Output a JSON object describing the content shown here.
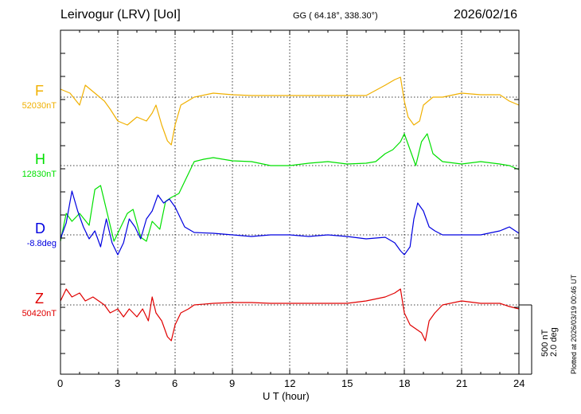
{
  "header": {
    "station": "Leirvogur (LRV)  [UoI]",
    "coords": "GG ( 64.18°, 338.30°)",
    "date": "2026/02/16"
  },
  "plotted_note": "Plotted at 2026/03/19 00:46 UT",
  "scale": {
    "nt": "500 nT",
    "deg": "2.0 deg"
  },
  "chart_data": {
    "type": "line",
    "title": "Leirvogur (LRV)  [UoI]",
    "xlabel": "U T (hour)",
    "ylabel": "",
    "xlim": [
      0,
      24
    ],
    "x_ticks": [
      "0",
      "3",
      "6",
      "9",
      "12",
      "15",
      "18",
      "21",
      "24"
    ],
    "y_unit_scale": "500 nT / 2.0 deg per scale bar",
    "grid": true,
    "series": [
      {
        "name": "F",
        "baseline": "52030nT",
        "color": "#f0b000",
        "x": [
          0,
          0.5,
          1,
          1.3,
          1.8,
          2.3,
          2.6,
          3,
          3.5,
          4,
          4.5,
          4.8,
          5,
          5.3,
          5.6,
          5.8,
          6,
          6.3,
          7,
          8,
          9,
          10,
          11,
          12,
          13,
          14,
          15,
          16,
          17,
          17.5,
          17.8,
          18,
          18.2,
          18.5,
          18.8,
          19,
          19.5,
          20,
          21,
          22,
          23,
          23.5,
          24
        ],
        "y": [
          10,
          5,
          -10,
          15,
          5,
          -5,
          -15,
          -30,
          -35,
          -25,
          -30,
          -20,
          -10,
          -35,
          -55,
          -60,
          -35,
          -10,
          0,
          5,
          3,
          2,
          2,
          2,
          2,
          2,
          2,
          2,
          15,
          22,
          25,
          -5,
          -25,
          -35,
          -30,
          -10,
          0,
          0,
          5,
          3,
          3,
          -5,
          -10
        ]
      },
      {
        "name": "H",
        "baseline": "12830nT",
        "color": "#00e000",
        "x": [
          0,
          0.3,
          0.6,
          1,
          1.5,
          1.8,
          2.1,
          2.5,
          2.8,
          3.1,
          3.5,
          3.8,
          4.2,
          4.5,
          4.8,
          5.2,
          5.5,
          5.8,
          6.2,
          6.6,
          7,
          7.5,
          8,
          9,
          10,
          11,
          12,
          13,
          14,
          15,
          16,
          16.5,
          17,
          17.4,
          17.8,
          18,
          18.3,
          18.6,
          18.9,
          19.2,
          19.5,
          20,
          21,
          22,
          23,
          23.5,
          24
        ],
        "y": [
          -95,
          -60,
          -70,
          -60,
          -75,
          -30,
          -25,
          -65,
          -95,
          -80,
          -60,
          -55,
          -90,
          -95,
          -70,
          -80,
          -45,
          -40,
          -35,
          -15,
          5,
          8,
          10,
          6,
          5,
          0,
          0,
          3,
          5,
          2,
          3,
          5,
          15,
          20,
          30,
          40,
          20,
          0,
          30,
          40,
          15,
          5,
          2,
          5,
          2,
          0,
          -5
        ]
      },
      {
        "name": "D",
        "baseline": "-8.8deg",
        "color": "#0000e0",
        "x": [
          0,
          0.3,
          0.6,
          0.9,
          1.2,
          1.5,
          1.8,
          2.1,
          2.4,
          2.7,
          3,
          3.3,
          3.6,
          3.9,
          4.2,
          4.5,
          4.8,
          5.1,
          5.4,
          5.7,
          6,
          6.5,
          7,
          8,
          9,
          10,
          11,
          12,
          13,
          14,
          15,
          16,
          17,
          17.5,
          17.8,
          18,
          18.3,
          18.5,
          18.7,
          19,
          19.3,
          19.6,
          20,
          21,
          22,
          23,
          23.5,
          24
        ],
        "y": [
          -5,
          15,
          55,
          30,
          10,
          -5,
          5,
          -15,
          20,
          -10,
          -25,
          -10,
          20,
          10,
          -5,
          20,
          30,
          50,
          40,
          45,
          35,
          10,
          3,
          2,
          0,
          -2,
          0,
          0,
          -2,
          0,
          -2,
          -5,
          -3,
          -10,
          -20,
          -25,
          -15,
          20,
          40,
          30,
          10,
          5,
          0,
          0,
          0,
          5,
          10,
          2
        ]
      },
      {
        "name": "Z",
        "baseline": "50420nT",
        "color": "#e00000",
        "x": [
          0,
          0.3,
          0.6,
          1,
          1.3,
          1.7,
          2,
          2.3,
          2.6,
          3,
          3.3,
          3.6,
          4,
          4.3,
          4.6,
          4.8,
          5,
          5.3,
          5.6,
          5.8,
          6,
          6.3,
          6.7,
          7,
          8,
          9,
          10,
          11,
          12,
          13,
          14,
          15,
          16,
          17,
          17.5,
          17.8,
          18,
          18.3,
          18.6,
          18.9,
          19.1,
          19.3,
          19.6,
          20,
          21,
          22,
          23,
          23.5,
          24
        ],
        "y": [
          5,
          20,
          10,
          15,
          5,
          10,
          5,
          0,
          -10,
          -5,
          -15,
          -5,
          -15,
          -5,
          -20,
          10,
          -10,
          -20,
          -40,
          -45,
          -25,
          -10,
          -5,
          0,
          2,
          3,
          3,
          2,
          2,
          2,
          2,
          2,
          5,
          10,
          15,
          20,
          -10,
          -25,
          -30,
          -35,
          -45,
          -20,
          -10,
          0,
          5,
          2,
          2,
          -2,
          -5
        ]
      }
    ]
  }
}
